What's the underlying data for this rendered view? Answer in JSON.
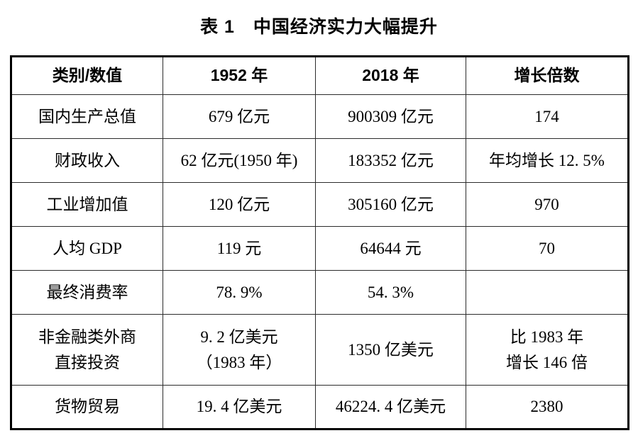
{
  "page": {
    "background_color": "#ffffff",
    "text_color": "#000000",
    "border_color": "#000000"
  },
  "title": "表 1　中国经济实力大幅提升",
  "table": {
    "columns": [
      "类别/数值",
      "1952 年",
      "2018 年",
      "增长倍数"
    ],
    "rows": [
      {
        "cells": [
          "国内生产总值",
          "679 亿元",
          "900309 亿元",
          "174"
        ],
        "tall": false
      },
      {
        "cells": [
          "财政收入",
          "62 亿元(1950 年)",
          "183352 亿元",
          "年均增长 12. 5%"
        ],
        "tall": false
      },
      {
        "cells": [
          "工业增加值",
          "120 亿元",
          "305160 亿元",
          "970"
        ],
        "tall": false
      },
      {
        "cells": [
          "人均 GDP",
          "119 元",
          "64644 元",
          "70"
        ],
        "tall": false
      },
      {
        "cells": [
          "最终消费率",
          "78. 9%",
          "54. 3%",
          ""
        ],
        "tall": false
      },
      {
        "cells": [
          "非金融类外商\n直接投资",
          "9. 2 亿美元\n（1983 年）",
          "1350 亿美元",
          "比 1983 年\n增长 146 倍"
        ],
        "tall": true
      },
      {
        "cells": [
          "货物贸易",
          "19. 4 亿美元",
          "46224. 4 亿美元",
          "2380"
        ],
        "tall": false
      }
    ]
  }
}
